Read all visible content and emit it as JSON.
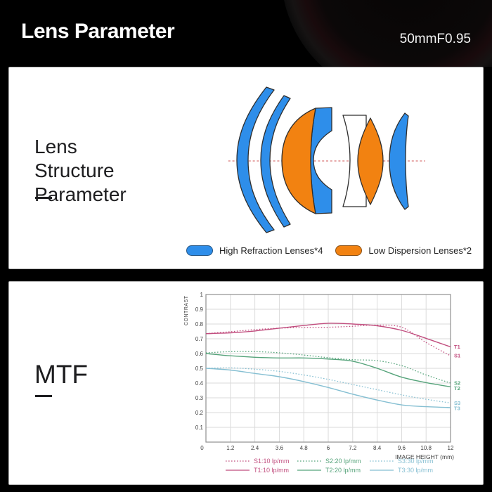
{
  "header": {
    "title": "Lens Parameter",
    "model": "50mmF0.95"
  },
  "structure_panel": {
    "heading_lines": [
      "Lens",
      "Structure",
      "Parameter"
    ],
    "colors": {
      "high_refraction": "#2e8eea",
      "low_dispersion": "#f28211",
      "element_fill_white": "#ffffff",
      "optical_axis": "#d05555"
    },
    "legend": [
      {
        "label": "High Refraction Lenses*4",
        "color": "#2e8eea"
      },
      {
        "label": "Low Dispersion Lenses*2",
        "color": "#f28211"
      }
    ]
  },
  "mtf_panel": {
    "heading": "MTF"
  },
  "chart_data": {
    "type": "line",
    "title": "MTF",
    "xlabel": "IMAGE HEIGHT (mm)",
    "ylabel": "CONTRAST",
    "xlim": [
      0,
      12
    ],
    "ylim": [
      0,
      1
    ],
    "y_tick_step": 0.1,
    "grid": true,
    "legend_position": "bottom",
    "x": [
      0,
      1.2,
      2.4,
      3.6,
      4.8,
      6,
      7.2,
      8.4,
      9.6,
      10.8,
      12
    ],
    "x_tick_labels": [
      "0",
      "1.2",
      "2.4",
      "3.6",
      "4.8",
      "6",
      "7.2",
      "8.4",
      "9.6",
      "10.8",
      "12"
    ],
    "series": [
      {
        "name": "S1:10 lp/mm",
        "label": "S1",
        "color": "#c14d7e",
        "style": "dotted",
        "values": [
          0.735,
          0.748,
          0.762,
          0.772,
          0.776,
          0.778,
          0.785,
          0.793,
          0.778,
          0.675,
          0.585
        ]
      },
      {
        "name": "T1:10 lp/mm",
        "label": "T1",
        "color": "#c14d7e",
        "style": "solid",
        "values": [
          0.735,
          0.74,
          0.753,
          0.772,
          0.79,
          0.805,
          0.8,
          0.788,
          0.757,
          0.703,
          0.645
        ]
      },
      {
        "name": "S2:20 lp/mm",
        "label": "S2",
        "color": "#55a37a",
        "style": "dotted",
        "values": [
          0.605,
          0.613,
          0.613,
          0.605,
          0.59,
          0.572,
          0.558,
          0.552,
          0.518,
          0.455,
          0.4
        ]
      },
      {
        "name": "T2:20 lp/mm",
        "label": "T2",
        "color": "#55a37a",
        "style": "solid",
        "values": [
          0.6,
          0.585,
          0.575,
          0.57,
          0.57,
          0.563,
          0.548,
          0.5,
          0.44,
          0.403,
          0.375
        ]
      },
      {
        "name": "S3:30 lp/mm",
        "label": "S3",
        "color": "#85bfd2",
        "style": "dotted",
        "values": [
          0.5,
          0.503,
          0.494,
          0.479,
          0.455,
          0.425,
          0.39,
          0.355,
          0.32,
          0.29,
          0.265
        ]
      },
      {
        "name": "T3:30 lp/mm",
        "label": "T3",
        "color": "#85bfd2",
        "style": "solid",
        "values": [
          0.5,
          0.488,
          0.465,
          0.443,
          0.41,
          0.37,
          0.325,
          0.285,
          0.252,
          0.24,
          0.234
        ]
      }
    ]
  }
}
